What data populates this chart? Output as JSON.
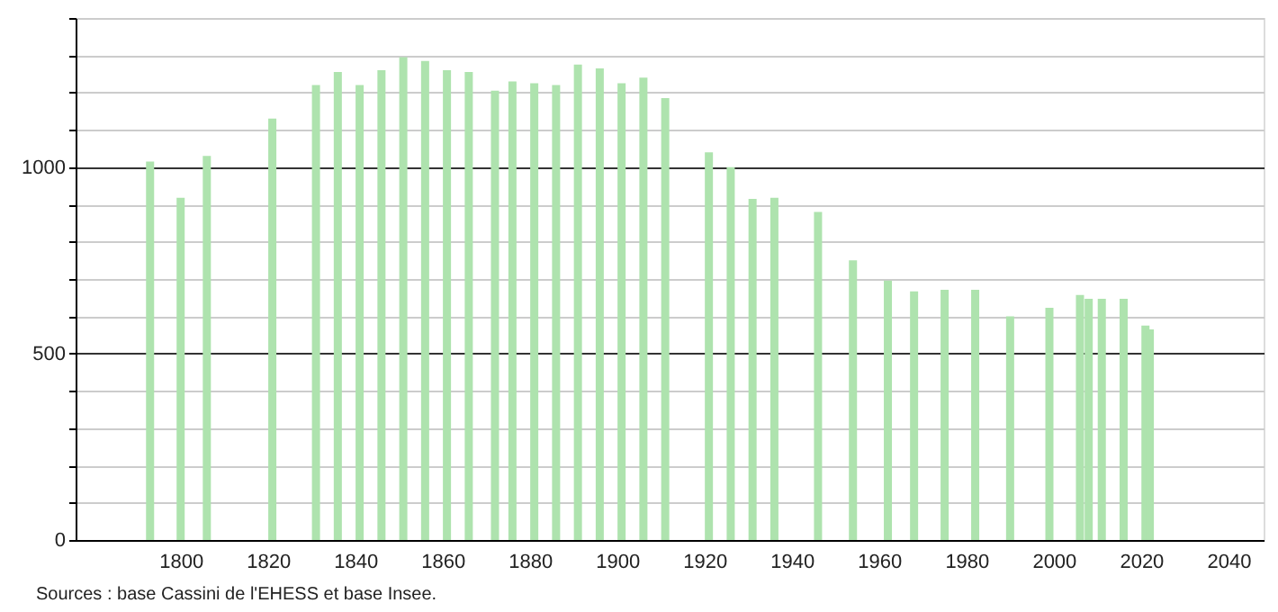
{
  "chart_data": {
    "type": "bar",
    "x": [
      1793,
      1800,
      1806,
      1821,
      1831,
      1836,
      1841,
      1846,
      1851,
      1856,
      1861,
      1866,
      1872,
      1876,
      1881,
      1886,
      1891,
      1896,
      1901,
      1906,
      1911,
      1921,
      1926,
      1931,
      1936,
      1946,
      1954,
      1962,
      1968,
      1975,
      1982,
      1990,
      1999,
      2006,
      2008,
      2011,
      2016,
      2021,
      2022
    ],
    "values": [
      1015,
      918,
      1030,
      1130,
      1220,
      1255,
      1220,
      1260,
      1295,
      1285,
      1260,
      1255,
      1205,
      1230,
      1225,
      1220,
      1275,
      1265,
      1225,
      1240,
      1185,
      1040,
      1000,
      915,
      918,
      880,
      750,
      696,
      667,
      671,
      671,
      600,
      623,
      657,
      647,
      647,
      647,
      575,
      565
    ],
    "color": "#aee3ae",
    "xlim": [
      1778,
      2046
    ],
    "xticks": [
      1800,
      1820,
      1840,
      1860,
      1880,
      1900,
      1920,
      1940,
      1960,
      1980,
      2000,
      2020,
      2040
    ],
    "ylim": [
      0,
      1400
    ],
    "yticks": [
      0,
      {
        "value": 100,
        "label": null
      },
      {
        "value": 200,
        "label": null
      },
      {
        "value": 300,
        "label": null
      },
      {
        "value": 400,
        "label": null
      },
      500,
      {
        "value": 600,
        "label": null
      },
      {
        "value": 700,
        "label": null
      },
      {
        "value": 800,
        "label": null
      },
      {
        "value": 900,
        "label": null
      },
      1000,
      {
        "value": 1100,
        "label": null
      },
      {
        "value": 1200,
        "label": null
      },
      {
        "value": 1300,
        "label": null
      },
      {
        "value": 1400,
        "label": null
      }
    ],
    "grid": "y",
    "annotations": [
      "Sources : base Cassini de l'EHESS et base Insee."
    ]
  }
}
